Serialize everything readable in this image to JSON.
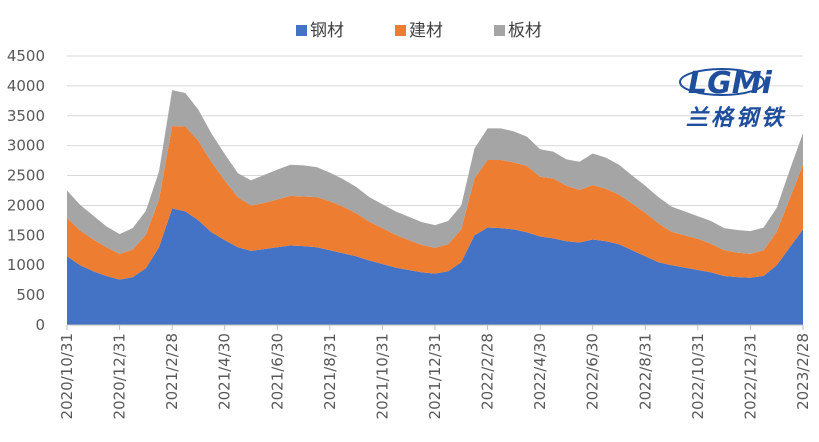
{
  "chart_data": {
    "type": "area",
    "stacked": true,
    "x_dates": [
      "2020/10/31",
      "2020/11/15",
      "2020/11/30",
      "2020/12/15",
      "2020/12/31",
      "2021/1/15",
      "2021/1/31",
      "2021/2/15",
      "2021/2/28",
      "2021/3/15",
      "2021/3/31",
      "2021/4/15",
      "2021/4/30",
      "2021/5/15",
      "2021/5/31",
      "2021/6/15",
      "2021/6/30",
      "2021/7/15",
      "2021/7/31",
      "2021/8/15",
      "2021/8/31",
      "2021/9/15",
      "2021/9/30",
      "2021/10/15",
      "2021/10/31",
      "2021/11/15",
      "2021/11/30",
      "2021/12/15",
      "2021/12/31",
      "2022/1/15",
      "2022/1/31",
      "2022/2/15",
      "2022/2/28",
      "2022/3/15",
      "2022/3/31",
      "2022/4/15",
      "2022/4/30",
      "2022/5/15",
      "2022/5/31",
      "2022/6/15",
      "2022/6/30",
      "2022/7/15",
      "2022/7/31",
      "2022/8/15",
      "2022/8/31",
      "2022/9/15",
      "2022/9/30",
      "2022/10/15",
      "2022/10/31",
      "2022/11/15",
      "2022/11/30",
      "2022/12/15",
      "2022/12/31",
      "2023/1/15",
      "2023/1/31",
      "2023/2/15",
      "2023/2/28"
    ],
    "x_tick_labels": [
      "2020/10/31",
      "2020/12/31",
      "2021/2/28",
      "2021/4/30",
      "2021/6/30",
      "2021/8/31",
      "2021/10/31",
      "2021/12/31",
      "2022/2/28",
      "2022/4/30",
      "2022/6/30",
      "2022/8/31",
      "2022/10/31",
      "2022/12/31",
      "2023/2/28"
    ],
    "y_ticks": [
      0,
      500,
      1000,
      1500,
      2000,
      2500,
      3000,
      3500,
      4000,
      4500
    ],
    "ylim": [
      0,
      4500
    ],
    "series": [
      {
        "name": "钢材",
        "color": "#4472c4",
        "values": [
          1150,
          1000,
          900,
          820,
          760,
          800,
          950,
          1300,
          1950,
          1900,
          1750,
          1550,
          1420,
          1300,
          1240,
          1270,
          1300,
          1330,
          1320,
          1300,
          1250,
          1200,
          1150,
          1080,
          1020,
          960,
          920,
          880,
          860,
          900,
          1050,
          1500,
          1630,
          1620,
          1600,
          1550,
          1480,
          1450,
          1400,
          1380,
          1430,
          1400,
          1350,
          1250,
          1150,
          1050,
          1000,
          960,
          920,
          880,
          820,
          800,
          790,
          820,
          1000,
          1300,
          1600
        ]
      },
      {
        "name": "建材",
        "color": "#ed7d31",
        "values": [
          640,
          580,
          530,
          480,
          430,
          460,
          560,
          800,
          1380,
          1420,
          1330,
          1170,
          1000,
          840,
          760,
          770,
          800,
          830,
          830,
          840,
          820,
          780,
          720,
          650,
          600,
          550,
          500,
          460,
          430,
          450,
          550,
          950,
          1130,
          1140,
          1120,
          1110,
          1000,
          1000,
          930,
          880,
          910,
          880,
          830,
          780,
          730,
          650,
          560,
          540,
          520,
          480,
          430,
          410,
          400,
          430,
          560,
          820,
          1080
        ]
      },
      {
        "name": "板材",
        "color": "#a5a5a5",
        "values": [
          460,
          430,
          400,
          350,
          330,
          360,
          400,
          470,
          600,
          560,
          520,
          480,
          440,
          400,
          420,
          470,
          500,
          520,
          520,
          500,
          480,
          460,
          440,
          410,
          400,
          390,
          390,
          380,
          380,
          390,
          400,
          500,
          530,
          530,
          520,
          490,
          460,
          450,
          440,
          470,
          530,
          520,
          500,
          470,
          450,
          440,
          420,
          400,
          380,
          380,
          370,
          380,
          380,
          380,
          400,
          480,
          530
        ]
      }
    ]
  }
}
